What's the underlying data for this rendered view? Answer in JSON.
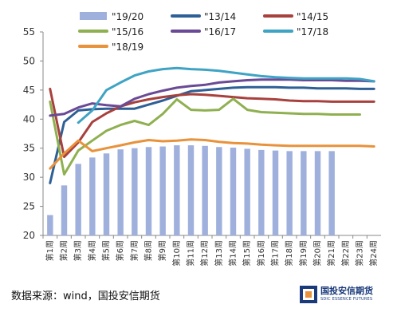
{
  "chart_data": {
    "type": "line",
    "ylim": [
      20,
      55
    ],
    "yticks": [
      20,
      25,
      30,
      35,
      40,
      45,
      50,
      55
    ],
    "categories": [
      "第1周",
      "第2周",
      "第3周",
      "第4周",
      "第5周",
      "第6周",
      "第7周",
      "第8周",
      "第9周",
      "第10周",
      "第11周",
      "第12周",
      "第13周",
      "第14周",
      "第15周",
      "第16周",
      "第17周",
      "第18周",
      "第19周",
      "第20周",
      "第21周",
      "第22周",
      "第23周",
      "第24周"
    ],
    "bar_series": {
      "name": "\"19/20",
      "color": "#9fb0dc",
      "values": [
        23.5,
        28.6,
        32.3,
        33.4,
        34.1,
        34.8,
        35.0,
        35.2,
        35.3,
        35.5,
        35.5,
        35.4,
        35.2,
        35.1,
        34.9,
        34.7,
        34.6,
        34.5,
        34.5,
        34.5,
        34.5,
        null,
        null,
        null
      ]
    },
    "series": [
      {
        "name": "\"13/14",
        "color": "#2e5f95",
        "values": [
          29.0,
          39.5,
          41.5,
          41.7,
          41.8,
          41.8,
          41.8,
          42.5,
          43.2,
          44.0,
          44.8,
          45.0,
          45.2,
          45.4,
          45.5,
          45.5,
          45.5,
          45.4,
          45.4,
          45.3,
          45.3,
          45.3,
          45.2,
          45.2
        ]
      },
      {
        "name": "\"14/15",
        "color": "#a8413d",
        "values": [
          45.2,
          33.5,
          36.0,
          39.5,
          41.0,
          42.2,
          42.9,
          43.4,
          43.8,
          44.1,
          44.3,
          44.2,
          44.0,
          43.8,
          43.6,
          43.5,
          43.4,
          43.2,
          43.1,
          43.1,
          43.0,
          43.0,
          43.0,
          43.0
        ]
      },
      {
        "name": "\"15/16",
        "color": "#8fb050",
        "values": [
          43.0,
          30.5,
          34.6,
          36.3,
          38.0,
          39.0,
          39.7,
          39.0,
          40.9,
          43.4,
          41.6,
          41.5,
          41.6,
          43.5,
          41.6,
          41.2,
          41.1,
          41.0,
          40.9,
          40.9,
          40.8,
          40.8,
          40.8,
          null
        ]
      },
      {
        "name": "\"16/17",
        "color": "#6a4a95",
        "values": [
          40.6,
          40.9,
          42.0,
          42.7,
          42.4,
          42.2,
          43.5,
          44.3,
          44.9,
          45.4,
          45.7,
          45.9,
          46.3,
          46.5,
          46.7,
          46.8,
          46.8,
          46.8,
          46.7,
          46.7,
          46.7,
          46.6,
          46.6,
          46.5
        ]
      },
      {
        "name": "\"17/18",
        "color": "#3fa3c4",
        "values": [
          null,
          null,
          39.4,
          41.5,
          45.0,
          46.3,
          47.5,
          48.2,
          48.6,
          48.8,
          48.6,
          48.5,
          48.3,
          48.0,
          47.7,
          47.4,
          47.2,
          47.1,
          47.0,
          47.0,
          47.0,
          47.0,
          46.9,
          46.5
        ]
      },
      {
        "name": "\"18/19",
        "color": "#e8923b",
        "values": [
          31.5,
          34.1,
          36.3,
          34.5,
          35.0,
          35.5,
          36.0,
          36.4,
          36.2,
          36.3,
          36.5,
          36.4,
          36.1,
          35.9,
          35.8,
          35.6,
          35.5,
          35.4,
          35.4,
          35.4,
          35.4,
          35.4,
          35.4,
          35.3
        ]
      }
    ],
    "legend": {
      "placement": "top",
      "order": [
        "\"19/20",
        "\"13/14",
        "\"14/15",
        "\"15/16",
        "\"16/17",
        "\"17/18",
        "\"18/19"
      ]
    },
    "grid": false
  },
  "footer": {
    "source": "数据来源：wind，国投安信期货"
  },
  "logo": {
    "name_cn": "国投安信期货",
    "name_en": "SDIC ESSENCE FUTURES"
  }
}
